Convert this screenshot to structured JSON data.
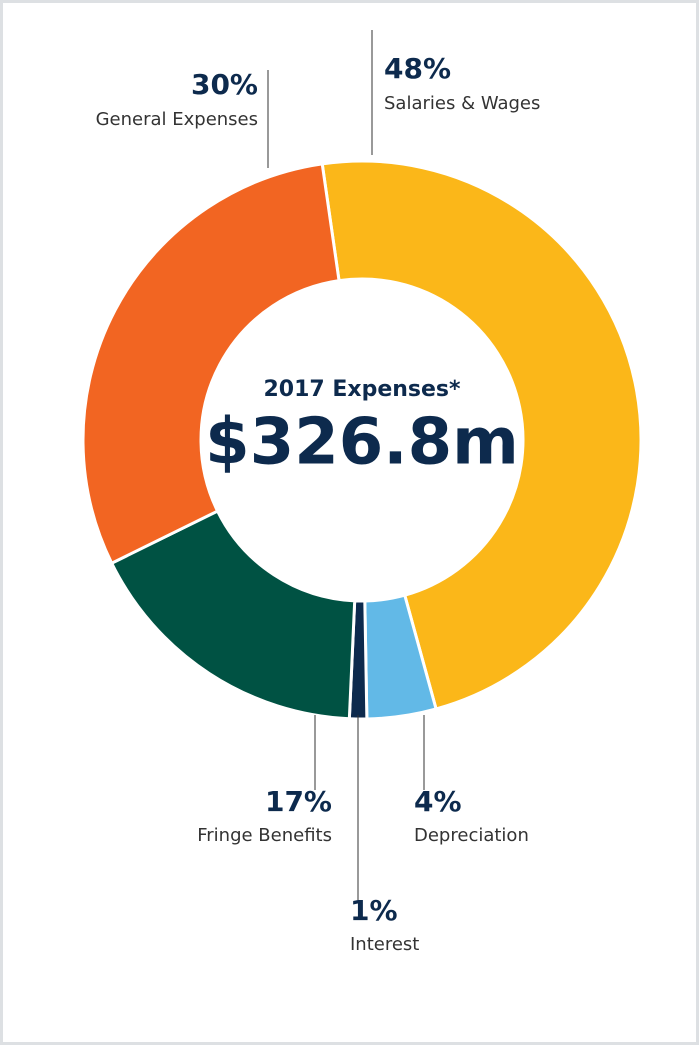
{
  "chart_data": {
    "type": "donut",
    "title": "2017 Expenses*",
    "subtitle": "$326.8m",
    "categories": [
      "Salaries & Wages",
      "Depreciation",
      "Interest",
      "Fringe Benefits",
      "General Expenses"
    ],
    "values": [
      48,
      4,
      1,
      17,
      30
    ],
    "value_labels": [
      "48%",
      "4%",
      "1%",
      "17%",
      "30%"
    ],
    "colors": [
      "#fbb719",
      "#62b9e7",
      "#0d2a4d",
      "#005243",
      "#f26522"
    ]
  }
}
